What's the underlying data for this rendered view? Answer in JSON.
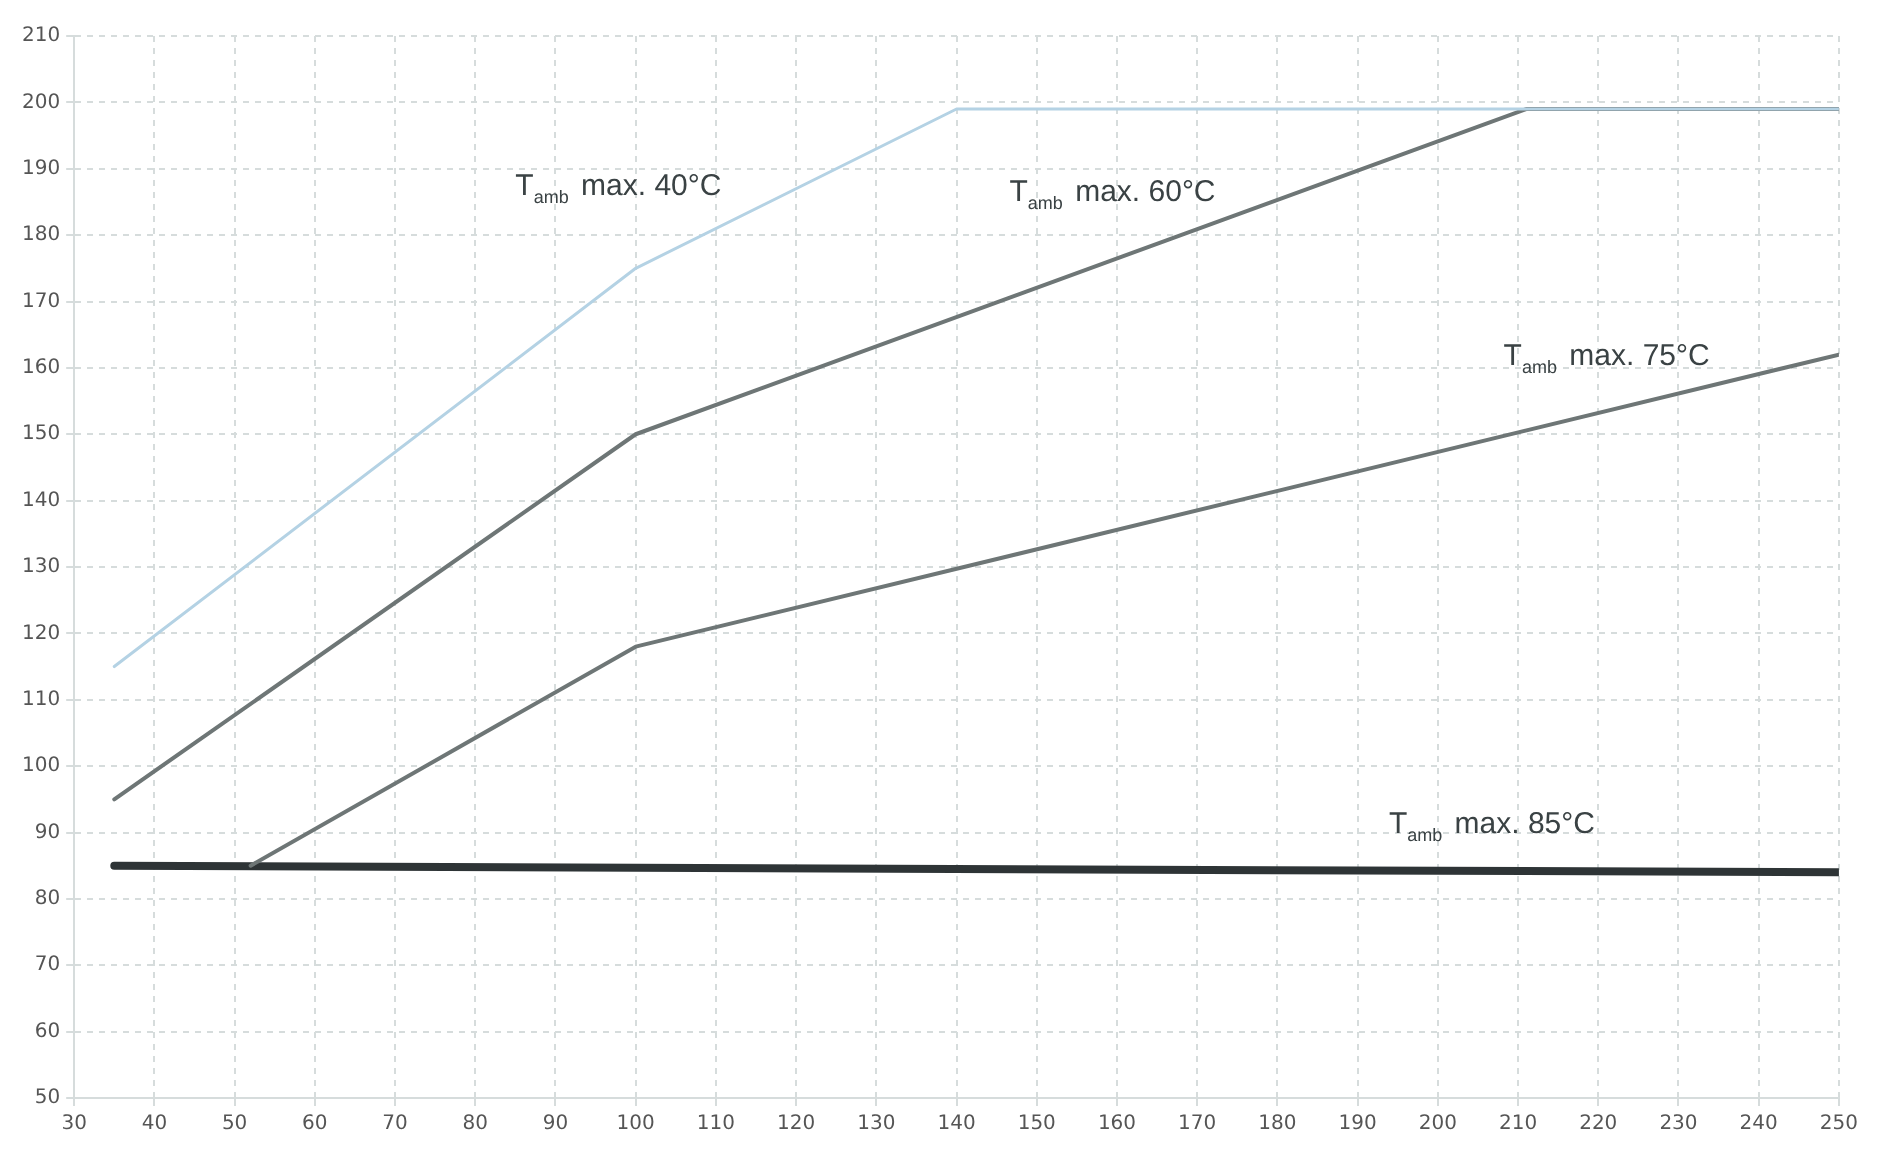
{
  "chart_data": {
    "type": "line",
    "series": [
      {
        "name": "T$_{amb}$ max. 40°C",
        "color": "#b4d2e4",
        "x": [
          35,
          100,
          140,
          250
        ],
        "values": [
          115,
          175,
          199,
          199
        ]
      },
      {
        "name": "T$_{amb}$ max. 60°C",
        "color": "#6e7676",
        "x": [
          35,
          100,
          211,
          250
        ],
        "values": [
          95,
          150,
          199,
          199
        ]
      },
      {
        "name": "T$_{amb}$ max. 75°C",
        "color": "#6e7676",
        "x": [
          52,
          100,
          250
        ],
        "values": [
          85,
          118,
          162
        ]
      },
      {
        "name": "T$_{amb}$ max. 85°C",
        "color": "#2e3436",
        "x": [
          35,
          250
        ],
        "values": [
          85,
          84
        ]
      }
    ],
    "xlim": [
      30,
      250
    ],
    "xticks": [
      30,
      40,
      50,
      60,
      70,
      80,
      90,
      100,
      110,
      120,
      130,
      140,
      150,
      160,
      170,
      180,
      190,
      200,
      210,
      220,
      230,
      240,
      250
    ],
    "ylim": [
      50,
      210
    ],
    "yticks": [
      50,
      60,
      70,
      80,
      90,
      100,
      110,
      120,
      130,
      140,
      150,
      160,
      170,
      180,
      190,
      200,
      210
    ],
    "grid": true,
    "legend": false,
    "marker": "none",
    "line_style": "solid"
  }
}
